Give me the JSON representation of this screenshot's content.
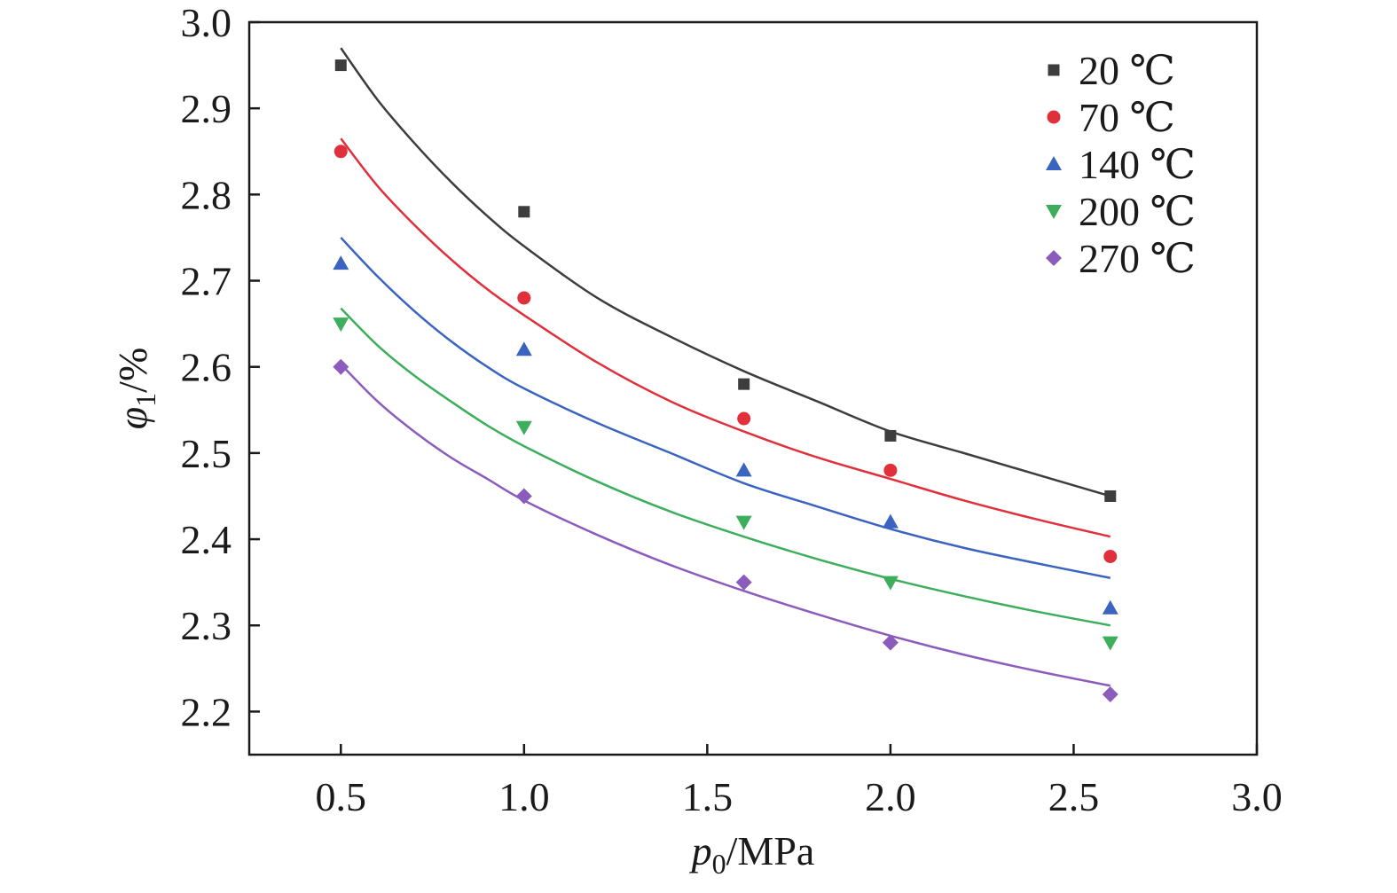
{
  "chart_data": {
    "type": "scatter",
    "xlabel": {
      "var": "p",
      "sub": "0",
      "unit": "/MPa"
    },
    "ylabel": {
      "var": "φ",
      "sub": "1",
      "unit": "/%"
    },
    "xlim": [
      0.25,
      3.0
    ],
    "ylim": [
      2.15,
      3.0
    ],
    "xticks": [
      0.5,
      1.0,
      1.5,
      2.0,
      2.5,
      3.0
    ],
    "xtick_labels": [
      "0.5",
      "1.0",
      "1.5",
      "2.0",
      "2.5",
      "3.0"
    ],
    "yticks": [
      2.2,
      2.3,
      2.4,
      2.5,
      2.6,
      2.7,
      2.8,
      2.9,
      3.0
    ],
    "ytick_labels": [
      "2.2",
      "2.3",
      "2.4",
      "2.5",
      "2.6",
      "2.7",
      "2.8",
      "2.9",
      "3.0"
    ],
    "grid": false,
    "legend_position": "top-right",
    "series": [
      {
        "name": "20 ℃",
        "color": "#3d3d3d",
        "marker": "square",
        "x": [
          0.5,
          1.0,
          1.6,
          2.0,
          2.6
        ],
        "y": [
          2.95,
          2.78,
          2.58,
          2.52,
          2.45
        ],
        "fit_x": [
          0.5,
          0.6,
          0.7,
          0.8,
          0.9,
          1.0,
          1.2,
          1.4,
          1.6,
          1.8,
          2.0,
          2.2,
          2.4,
          2.6
        ],
        "fit_y": [
          2.97,
          2.91,
          2.86,
          2.815,
          2.775,
          2.74,
          2.68,
          2.635,
          2.595,
          2.56,
          2.525,
          2.5,
          2.475,
          2.45
        ]
      },
      {
        "name": "70 ℃",
        "color": "#e0303c",
        "marker": "circle",
        "x": [
          0.5,
          1.0,
          1.6,
          2.0,
          2.6
        ],
        "y": [
          2.85,
          2.68,
          2.54,
          2.48,
          2.38
        ],
        "fit_x": [
          0.5,
          0.6,
          0.7,
          0.8,
          0.9,
          1.0,
          1.2,
          1.4,
          1.6,
          1.8,
          2.0,
          2.2,
          2.4,
          2.6
        ],
        "fit_y": [
          2.865,
          2.81,
          2.765,
          2.725,
          2.69,
          2.66,
          2.605,
          2.56,
          2.525,
          2.495,
          2.47,
          2.445,
          2.423,
          2.403
        ]
      },
      {
        "name": "140 ℃",
        "color": "#3a64c0",
        "marker": "triangle-up",
        "x": [
          0.5,
          1.0,
          1.6,
          2.0,
          2.6
        ],
        "y": [
          2.72,
          2.62,
          2.48,
          2.42,
          2.32
        ],
        "fit_x": [
          0.5,
          0.6,
          0.7,
          0.8,
          0.9,
          1.0,
          1.2,
          1.4,
          1.6,
          1.8,
          2.0,
          2.2,
          2.4,
          2.6
        ],
        "fit_y": [
          2.75,
          2.705,
          2.665,
          2.63,
          2.6,
          2.575,
          2.535,
          2.5,
          2.465,
          2.438,
          2.412,
          2.39,
          2.372,
          2.355
        ]
      },
      {
        "name": "200 ℃",
        "color": "#3cae5c",
        "marker": "triangle-down",
        "x": [
          0.5,
          1.0,
          1.6,
          2.0,
          2.6
        ],
        "y": [
          2.65,
          2.53,
          2.42,
          2.35,
          2.28
        ],
        "fit_x": [
          0.5,
          0.6,
          0.7,
          0.8,
          0.9,
          1.0,
          1.2,
          1.4,
          1.6,
          1.8,
          2.0,
          2.2,
          2.4,
          2.6
        ],
        "fit_y": [
          2.668,
          2.625,
          2.59,
          2.56,
          2.532,
          2.508,
          2.467,
          2.432,
          2.403,
          2.377,
          2.354,
          2.334,
          2.316,
          2.3
        ]
      },
      {
        "name": "270 ℃",
        "color": "#8c5cbc",
        "marker": "diamond",
        "x": [
          0.5,
          1.0,
          1.6,
          2.0,
          2.6
        ],
        "y": [
          2.6,
          2.45,
          2.35,
          2.28,
          2.22
        ],
        "fit_x": [
          0.5,
          0.6,
          0.7,
          0.8,
          0.9,
          1.0,
          1.2,
          1.4,
          1.6,
          1.8,
          2.0,
          2.2,
          2.4,
          2.6
        ],
        "fit_y": [
          2.603,
          2.56,
          2.525,
          2.495,
          2.47,
          2.445,
          2.405,
          2.37,
          2.34,
          2.313,
          2.288,
          2.266,
          2.247,
          2.23
        ]
      }
    ]
  }
}
